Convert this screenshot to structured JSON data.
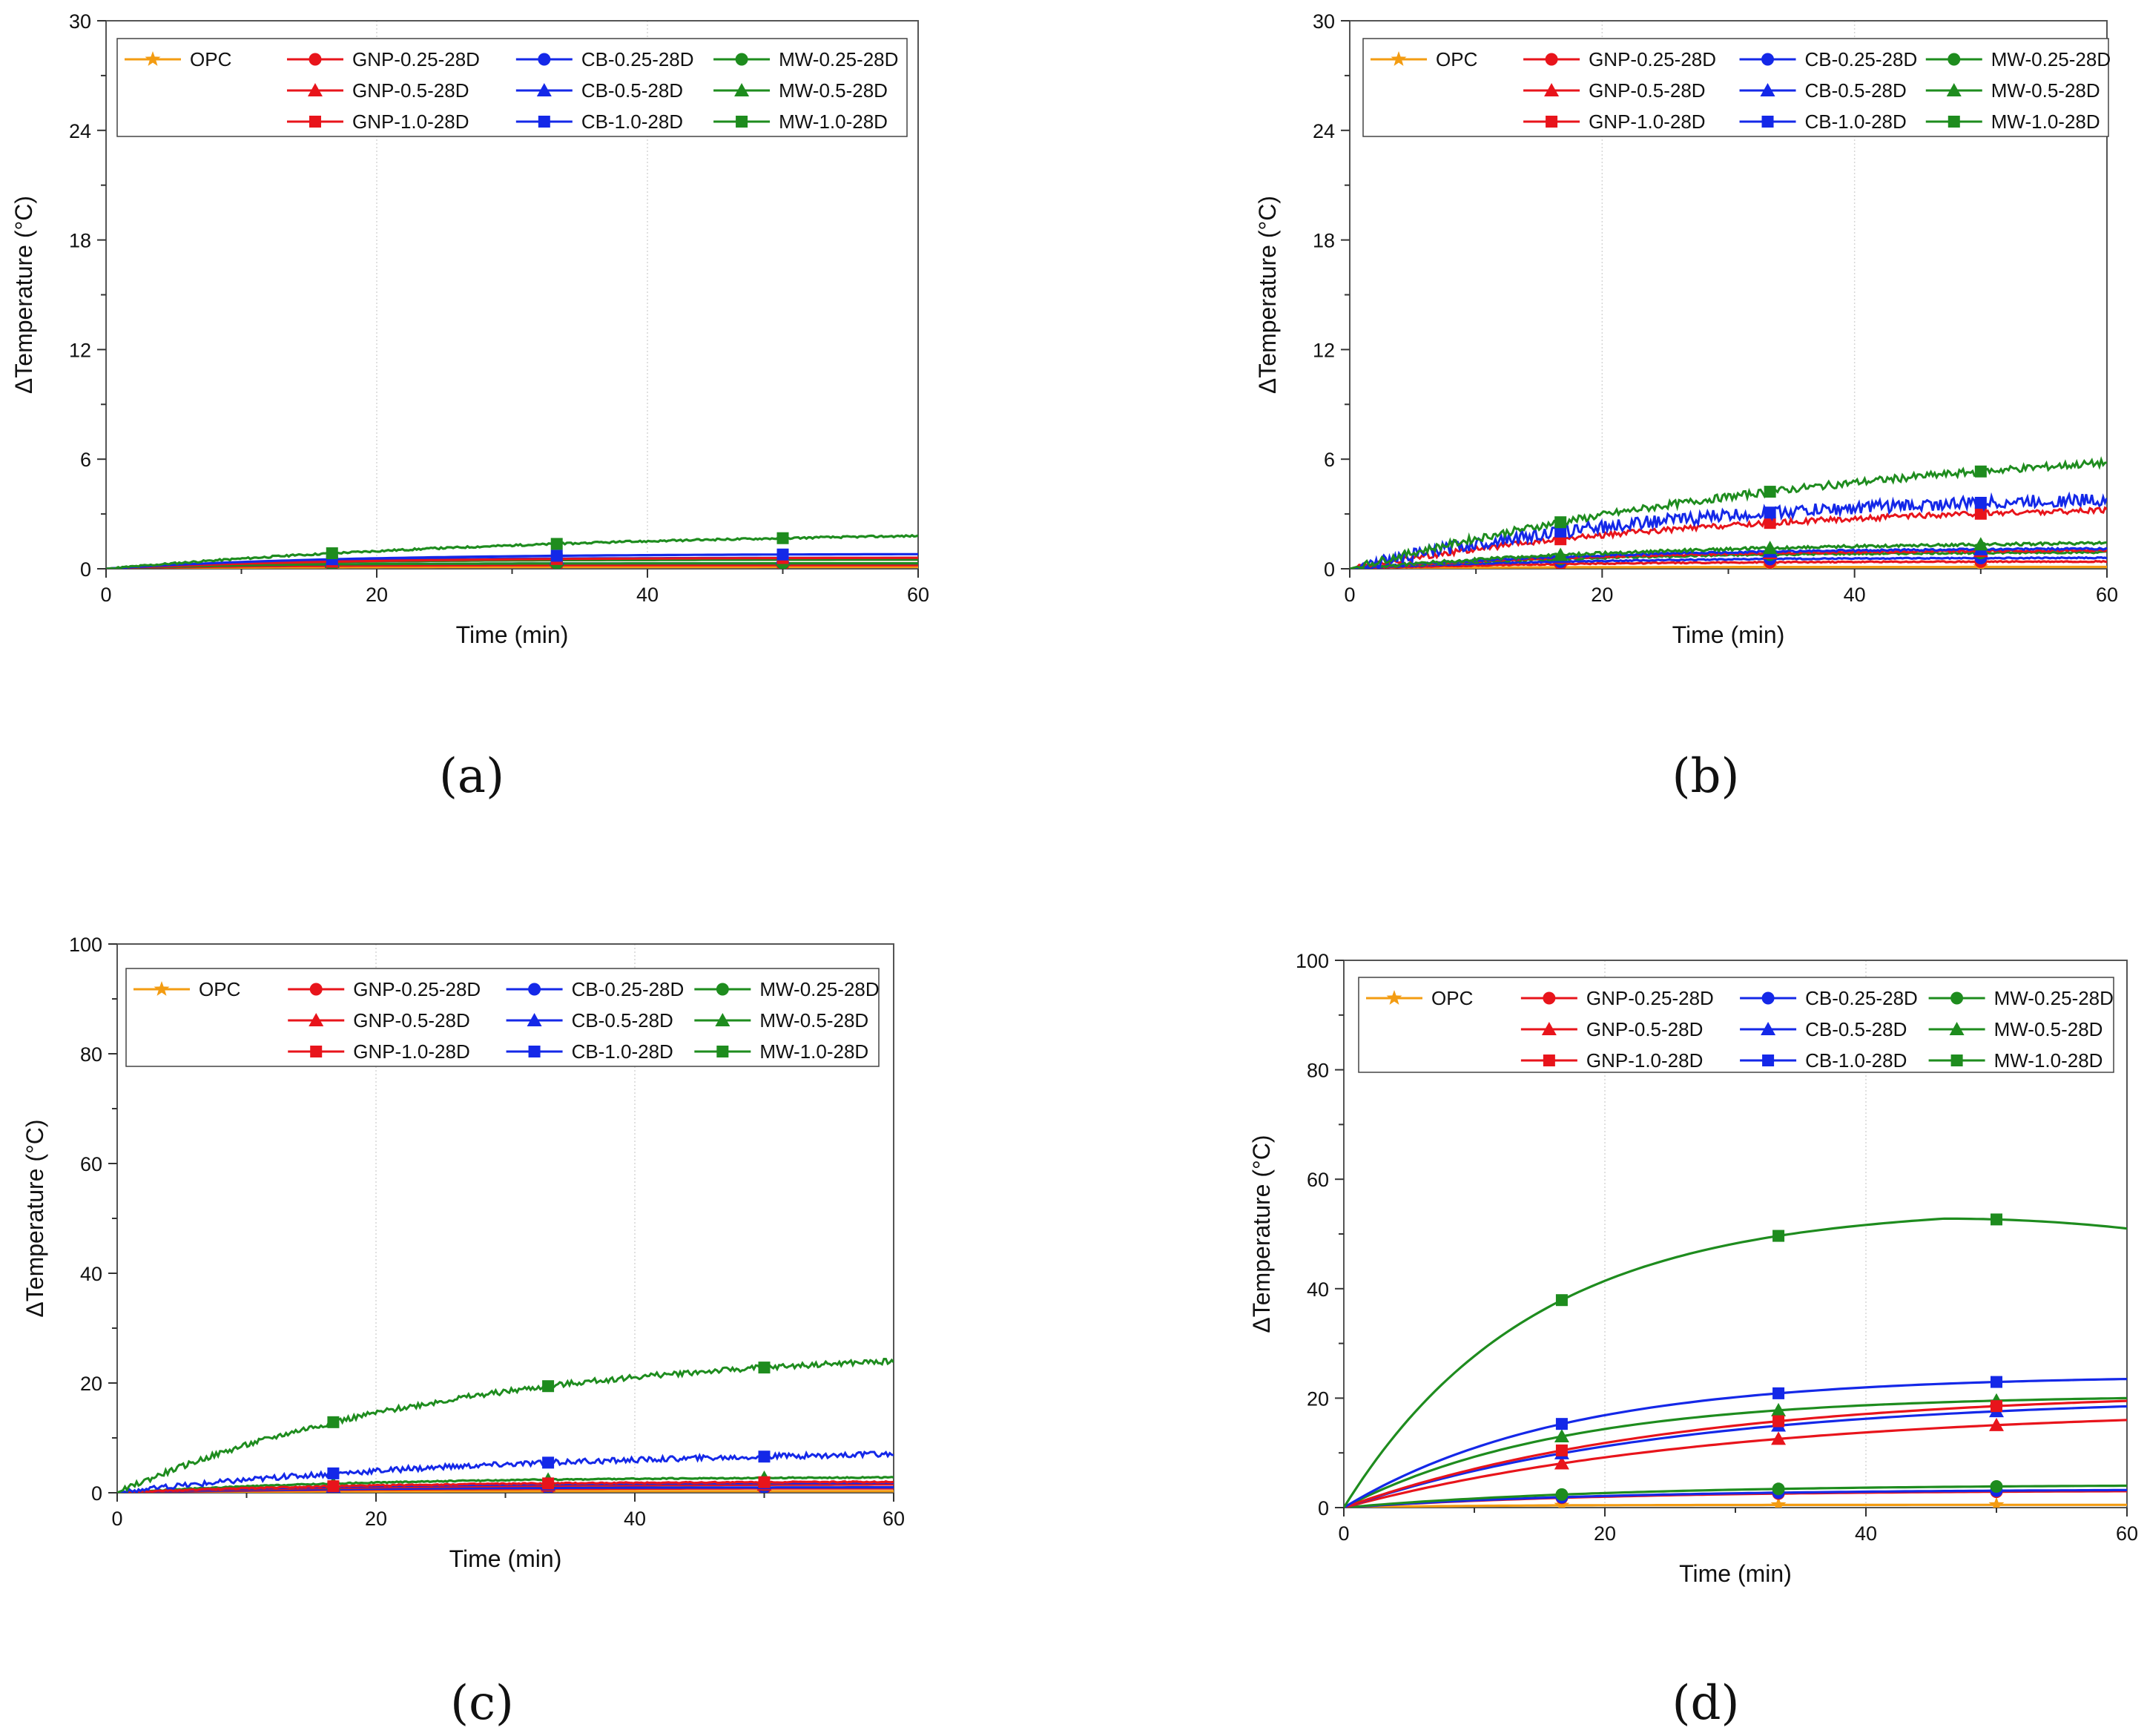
{
  "colors": {
    "OPC": "#f39c12",
    "GNP": "#e8141b",
    "CB": "#1428e8",
    "MW": "#1e8c1e"
  },
  "legend": [
    {
      "label": "OPC",
      "family": "OPC",
      "marker": "star"
    },
    {
      "label": "GNP-0.25-28D",
      "family": "GNP",
      "marker": "circle"
    },
    {
      "label": "CB-0.25-28D",
      "family": "CB",
      "marker": "circle"
    },
    {
      "label": "MW-0.25-28D",
      "family": "MW",
      "marker": "circle"
    },
    {
      "label": "GNP-0.5-28D",
      "family": "GNP",
      "marker": "triangle"
    },
    {
      "label": "CB-0.5-28D",
      "family": "CB",
      "marker": "triangle"
    },
    {
      "label": "MW-0.5-28D",
      "family": "MW",
      "marker": "triangle"
    },
    {
      "label": "GNP-1.0-28D",
      "family": "GNP",
      "marker": "square"
    },
    {
      "label": "CB-1.0-28D",
      "family": "CB",
      "marker": "square"
    },
    {
      "label": "MW-1.0-28D",
      "family": "MW",
      "marker": "square"
    }
  ],
  "chart_data": [
    {
      "type": "line",
      "panel": "(a)",
      "xlabel": "Time (min)",
      "ylabel": "ΔTemperature (°C)",
      "xlim": [
        0,
        60
      ],
      "ylim": [
        0,
        30
      ],
      "xticks": [
        0,
        20,
        40,
        60
      ],
      "yticks": [
        0,
        6,
        12,
        18,
        24,
        30
      ],
      "grid": true,
      "marker_x": [
        16.7,
        33.3,
        50
      ],
      "series": [
        {
          "name": "OPC",
          "family": "OPC",
          "marker": "star",
          "final": 0.1,
          "k": 0.1,
          "noise": 0
        },
        {
          "name": "GNP-0.25-28D",
          "family": "GNP",
          "marker": "circle",
          "final": 0.2,
          "k": 0.1,
          "noise": 0
        },
        {
          "name": "CB-0.25-28D",
          "family": "CB",
          "marker": "circle",
          "final": 0.3,
          "k": 0.1,
          "noise": 0
        },
        {
          "name": "MW-0.25-28D",
          "family": "MW",
          "marker": "circle",
          "final": 0.3,
          "k": 0.1,
          "noise": 0
        },
        {
          "name": "GNP-0.5-28D",
          "family": "GNP",
          "marker": "triangle",
          "final": 0.5,
          "k": 0.08,
          "noise": 0
        },
        {
          "name": "CB-0.5-28D",
          "family": "CB",
          "marker": "triangle",
          "final": 0.6,
          "k": 0.08,
          "noise": 0
        },
        {
          "name": "MW-0.5-28D",
          "family": "MW",
          "marker": "triangle",
          "final": 0.5,
          "k": 0.08,
          "noise": 0
        },
        {
          "name": "GNP-1.0-28D",
          "family": "GNP",
          "marker": "square",
          "final": 0.6,
          "k": 0.06,
          "noise": 0
        },
        {
          "name": "CB-1.0-28D",
          "family": "CB",
          "marker": "square",
          "final": 0.8,
          "k": 0.06,
          "noise": 0
        },
        {
          "name": "MW-1.0-28D",
          "family": "MW",
          "marker": "square",
          "final": 1.8,
          "k": 0.03,
          "noise": 0.05
        }
      ]
    },
    {
      "type": "line",
      "panel": "(b)",
      "xlabel": "Time (min)",
      "ylabel": "ΔTemperature (°C)",
      "xlim": [
        0,
        60
      ],
      "ylim": [
        0,
        30
      ],
      "xticks": [
        0,
        20,
        40,
        60
      ],
      "yticks": [
        0,
        6,
        12,
        18,
        24,
        30
      ],
      "grid": true,
      "marker_x": [
        16.7,
        33.3,
        50
      ],
      "series": [
        {
          "name": "OPC",
          "family": "OPC",
          "marker": "star",
          "final": 0.1,
          "k": 0.1,
          "noise": 0
        },
        {
          "name": "GNP-0.25-28D",
          "family": "GNP",
          "marker": "circle",
          "final": 0.4,
          "k": 0.06,
          "noise": 0.03
        },
        {
          "name": "CB-0.25-28D",
          "family": "CB",
          "marker": "circle",
          "final": 0.6,
          "k": 0.06,
          "noise": 0.03
        },
        {
          "name": "MW-0.25-28D",
          "family": "MW",
          "marker": "circle",
          "final": 0.9,
          "k": 0.05,
          "noise": 0.05
        },
        {
          "name": "GNP-0.5-28D",
          "family": "GNP",
          "marker": "triangle",
          "final": 1.0,
          "k": 0.05,
          "noise": 0.05
        },
        {
          "name": "CB-0.5-28D",
          "family": "CB",
          "marker": "triangle",
          "final": 1.1,
          "k": 0.05,
          "noise": 0.05
        },
        {
          "name": "MW-0.5-28D",
          "family": "MW",
          "marker": "triangle",
          "final": 1.4,
          "k": 0.04,
          "noise": 0.08
        },
        {
          "name": "GNP-1.0-28D",
          "family": "GNP",
          "marker": "square",
          "final": 3.2,
          "k": 0.035,
          "noise": 0.15
        },
        {
          "name": "CB-1.0-28D",
          "family": "CB",
          "marker": "square",
          "final": 3.8,
          "k": 0.04,
          "noise": 0.35
        },
        {
          "name": "MW-1.0-28D",
          "family": "MW",
          "marker": "square",
          "final": 5.8,
          "k": 0.025,
          "noise": 0.2
        }
      ]
    },
    {
      "type": "line",
      "panel": "(c)",
      "xlabel": "Time (min)",
      "ylabel": "ΔTemperature (°C)",
      "xlim": [
        0,
        60
      ],
      "ylim": [
        0,
        100
      ],
      "xticks": [
        0,
        20,
        40,
        60
      ],
      "yticks": [
        0,
        20,
        40,
        60,
        80,
        100
      ],
      "grid": true,
      "marker_x": [
        16.7,
        33.3,
        50
      ],
      "series": [
        {
          "name": "OPC",
          "family": "OPC",
          "marker": "star",
          "final": 0.3,
          "k": 0.1,
          "noise": 0
        },
        {
          "name": "GNP-0.25-28D",
          "family": "GNP",
          "marker": "circle",
          "final": 0.8,
          "k": 0.06,
          "noise": 0
        },
        {
          "name": "CB-0.25-28D",
          "family": "CB",
          "marker": "circle",
          "final": 1.0,
          "k": 0.06,
          "noise": 0
        },
        {
          "name": "MW-0.25-28D",
          "family": "MW",
          "marker": "circle",
          "final": 1.5,
          "k": 0.05,
          "noise": 0
        },
        {
          "name": "GNP-0.5-28D",
          "family": "GNP",
          "marker": "triangle",
          "final": 1.5,
          "k": 0.05,
          "noise": 0
        },
        {
          "name": "CB-0.5-28D",
          "family": "CB",
          "marker": "triangle",
          "final": 1.8,
          "k": 0.05,
          "noise": 0
        },
        {
          "name": "MW-0.5-28D",
          "family": "MW",
          "marker": "triangle",
          "final": 2.8,
          "k": 0.05,
          "noise": 0.1
        },
        {
          "name": "GNP-1.0-28D",
          "family": "GNP",
          "marker": "square",
          "final": 2.0,
          "k": 0.05,
          "noise": 0.1
        },
        {
          "name": "CB-1.0-28D",
          "family": "CB",
          "marker": "square",
          "final": 7.0,
          "k": 0.035,
          "noise": 0.5
        },
        {
          "name": "MW-1.0-28D",
          "family": "MW",
          "marker": "square",
          "final": 24.0,
          "k": 0.04,
          "noise": 0.5
        }
      ]
    },
    {
      "type": "line",
      "panel": "(d)",
      "xlabel": "Time (min)",
      "ylabel": "ΔTemperature (°C)",
      "xlim": [
        0,
        60
      ],
      "ylim": [
        0,
        100
      ],
      "xticks": [
        0,
        20,
        40,
        60
      ],
      "yticks": [
        0,
        20,
        40,
        60,
        80,
        100
      ],
      "grid": true,
      "marker_x": [
        16.7,
        33.3,
        50
      ],
      "series": [
        {
          "name": "OPC",
          "family": "OPC",
          "marker": "star",
          "final": 0.5,
          "k": 0.1,
          "noise": 0
        },
        {
          "name": "GNP-0.25-28D",
          "family": "GNP",
          "marker": "circle",
          "final": 3.0,
          "k": 0.05,
          "noise": 0
        },
        {
          "name": "CB-0.25-28D",
          "family": "CB",
          "marker": "circle",
          "final": 3.2,
          "k": 0.05,
          "noise": 0
        },
        {
          "name": "MW-0.25-28D",
          "family": "MW",
          "marker": "circle",
          "final": 4.0,
          "k": 0.05,
          "noise": 0
        },
        {
          "name": "GNP-0.5-28D",
          "family": "GNP",
          "marker": "triangle",
          "final": 16.0,
          "k": 0.035,
          "noise": 0
        },
        {
          "name": "CB-0.5-28D",
          "family": "CB",
          "marker": "triangle",
          "final": 18.5,
          "k": 0.04,
          "noise": 0
        },
        {
          "name": "MW-0.5-28D",
          "family": "MW",
          "marker": "triangle",
          "final": 20.0,
          "k": 0.06,
          "noise": 0
        },
        {
          "name": "GNP-1.0-28D",
          "family": "GNP",
          "marker": "square",
          "final": 19.5,
          "k": 0.04,
          "noise": 0
        },
        {
          "name": "CB-1.0-28D",
          "family": "CB",
          "marker": "square",
          "final": 23.5,
          "k": 0.06,
          "noise": 0
        },
        {
          "name": "MW-1.0-28D",
          "family": "MW",
          "marker": "square",
          "final": 51.0,
          "k": 0.07,
          "noise": 0,
          "peak": 52.8,
          "peak_t": 46
        }
      ]
    }
  ]
}
